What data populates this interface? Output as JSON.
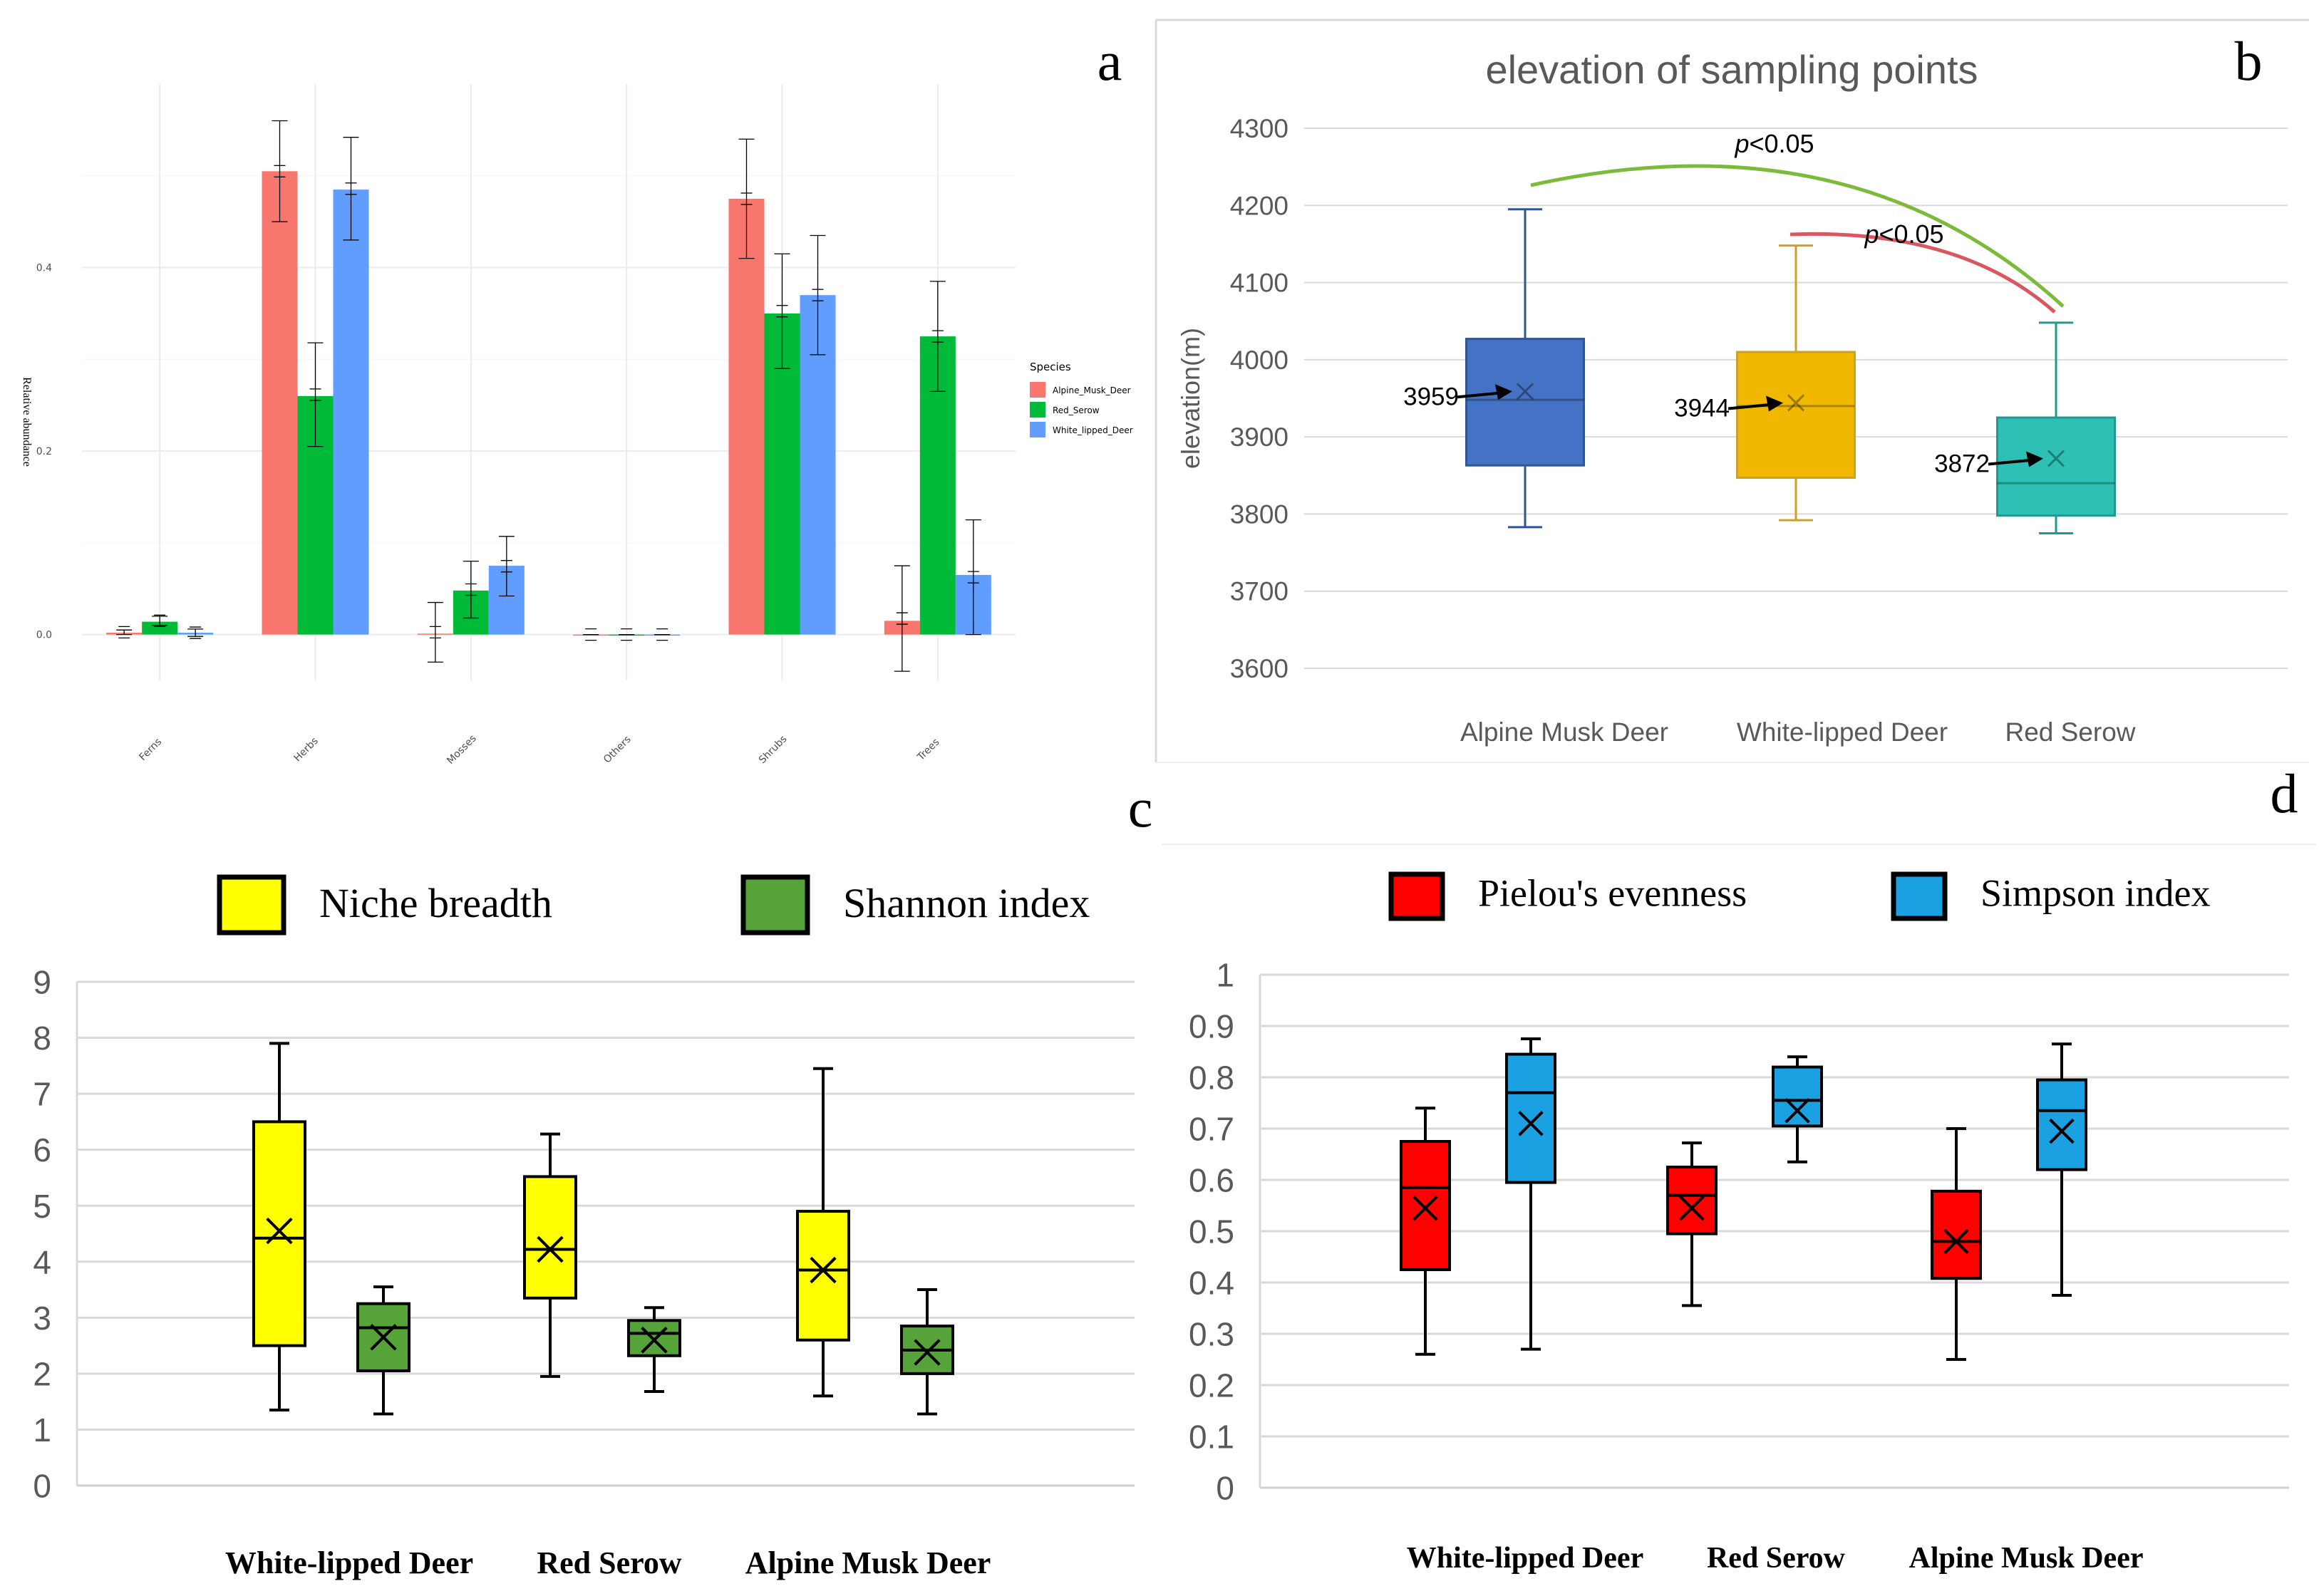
{
  "panels": [
    {
      "id": "a",
      "label": "a"
    },
    {
      "id": "b",
      "label": "b"
    },
    {
      "id": "c",
      "label": "c"
    },
    {
      "id": "d",
      "label": "d"
    }
  ],
  "chart_data": [
    {
      "id": "a",
      "type": "bar",
      "title": "",
      "xlabel": "",
      "ylabel": "Relative abundance",
      "ylim": [
        -0.05,
        0.6
      ],
      "yticks": [
        0.0,
        0.2,
        0.4
      ],
      "yticklabels": [
        "0.0",
        "0.2",
        "0.4"
      ],
      "categories": [
        "Ferns",
        "Herbs",
        "Mosses",
        "Others",
        "Shrubs",
        "Trees"
      ],
      "legend_title": "Species",
      "legend_position": "right",
      "series": [
        {
          "name": "Alpine_Musk_Deer",
          "color": "#F8766D",
          "values": [
            0.002,
            0.505,
            0.001,
            0.0,
            0.475,
            0.015
          ],
          "err_low": [
            0.0,
            0.45,
            -0.03,
            0.0,
            0.41,
            -0.04
          ],
          "err_high": [
            0.005,
            0.56,
            0.035,
            0.0,
            0.54,
            0.075
          ]
        },
        {
          "name": "Red_Serow",
          "color": "#00BA38",
          "values": [
            0.014,
            0.26,
            0.048,
            0.0,
            0.35,
            0.325
          ],
          "err_low": [
            0.01,
            0.205,
            0.018,
            0.0,
            0.29,
            0.265
          ],
          "err_high": [
            0.02,
            0.318,
            0.08,
            0.0,
            0.415,
            0.385
          ]
        },
        {
          "name": "White_lipped_Deer",
          "color": "#619CFF",
          "values": [
            0.002,
            0.485,
            0.075,
            0.0,
            0.37,
            0.065
          ],
          "err_low": [
            -0.002,
            0.43,
            0.042,
            0.0,
            0.305,
            0.0
          ],
          "err_high": [
            0.006,
            0.542,
            0.107,
            0.0,
            0.435,
            0.125
          ]
        }
      ]
    },
    {
      "id": "b",
      "type": "box",
      "title": "elevation of sampling points",
      "xlabel": "",
      "ylabel": "elevation(m)",
      "ylim": [
        3600,
        4300
      ],
      "yticks": [
        3600,
        3700,
        3800,
        3900,
        4000,
        4100,
        4200,
        4300
      ],
      "yticklabels": [
        "3600",
        "3700",
        "3800",
        "3900",
        "4000",
        "4100",
        "4200",
        "4300"
      ],
      "categories": [
        "Alpine Musk Deer",
        "White-lipped Deer",
        "Red Serow"
      ],
      "boxes": [
        {
          "category": "Alpine Musk Deer",
          "color": "#4472C4",
          "edge": "#2F5597",
          "min": 3783,
          "q1": 3863,
          "median": 3948,
          "mean": 3959,
          "q3": 4027,
          "max": 4195,
          "mean_label": "3959"
        },
        {
          "category": "White-lipped Deer",
          "color": "#F0B800",
          "edge": "#C9A227",
          "min": 3792,
          "q1": 3847,
          "median": 3940,
          "mean": 3944,
          "q3": 4010,
          "max": 4148,
          "mean_label": "3944"
        },
        {
          "category": "Red Serow",
          "color": "#2EC0B5",
          "edge": "#1E9A91",
          "min": 3775,
          "q1": 3798,
          "median": 3840,
          "mean": 3872,
          "q3": 3925,
          "max": 4048,
          "mean_label": "3872"
        }
      ],
      "annotations": [
        {
          "text": "p<0.05",
          "italic_prefix": "p",
          "rest": "<0.05",
          "from": "Alpine Musk Deer",
          "to": "Red Serow",
          "color": "#7CBA3C"
        },
        {
          "text": "p<0.05",
          "italic_prefix": "p",
          "rest": "<0.05",
          "from": "White-lipped Deer",
          "to": "Red Serow",
          "color": "#D9575F"
        }
      ]
    },
    {
      "id": "c",
      "type": "box",
      "title": "",
      "xlabel": "",
      "ylabel": "",
      "ylim": [
        0,
        9
      ],
      "yticks": [
        0,
        1,
        2,
        3,
        4,
        5,
        6,
        7,
        8,
        9
      ],
      "yticklabels": [
        "0",
        "1",
        "2",
        "3",
        "4",
        "5",
        "6",
        "7",
        "8",
        "9"
      ],
      "categories": [
        "White-lipped Deer",
        "Red Serow",
        "Alpine Musk Deer"
      ],
      "legend_position": "top",
      "series": [
        {
          "name": "Niche breadth",
          "color": "#FFFF00",
          "boxes": [
            {
              "min": 1.35,
              "q1": 2.5,
              "median": 4.42,
              "mean": 4.55,
              "q3": 6.5,
              "max": 7.9
            },
            {
              "min": 1.95,
              "q1": 3.35,
              "median": 4.22,
              "mean": 4.22,
              "q3": 5.52,
              "max": 6.28
            },
            {
              "min": 1.6,
              "q1": 2.6,
              "median": 3.85,
              "mean": 3.85,
              "q3": 4.9,
              "max": 7.45
            }
          ]
        },
        {
          "name": "Shannon index",
          "color": "#56A33A",
          "boxes": [
            {
              "min": 1.28,
              "q1": 2.05,
              "median": 2.82,
              "mean": 2.65,
              "q3": 3.25,
              "max": 3.55
            },
            {
              "min": 1.68,
              "q1": 2.32,
              "median": 2.72,
              "mean": 2.6,
              "q3": 2.95,
              "max": 3.18
            },
            {
              "min": 1.28,
              "q1": 2.0,
              "median": 2.42,
              "mean": 2.38,
              "q3": 2.85,
              "max": 3.5
            }
          ]
        }
      ]
    },
    {
      "id": "d",
      "type": "box",
      "title": "",
      "xlabel": "",
      "ylabel": "",
      "ylim": [
        0,
        1
      ],
      "yticks": [
        0,
        0.1,
        0.2,
        0.3,
        0.4,
        0.5,
        0.6,
        0.7,
        0.8,
        0.9,
        1
      ],
      "yticklabels": [
        "0",
        "0.1",
        "0.2",
        "0.3",
        "0.4",
        "0.5",
        "0.6",
        "0.7",
        "0.8",
        "0.9",
        "1"
      ],
      "categories": [
        "White-lipped Deer",
        "Red Serow",
        "Alpine Musk Deer"
      ],
      "legend_position": "top",
      "series": [
        {
          "name": "Pielou's evenness",
          "color": "#FF0000",
          "boxes": [
            {
              "min": 0.26,
              "q1": 0.425,
              "median": 0.585,
              "mean": 0.545,
              "q3": 0.675,
              "max": 0.74
            },
            {
              "min": 0.355,
              "q1": 0.495,
              "median": 0.57,
              "mean": 0.545,
              "q3": 0.625,
              "max": 0.672
            },
            {
              "min": 0.25,
              "q1": 0.408,
              "median": 0.48,
              "mean": 0.48,
              "q3": 0.578,
              "max": 0.7
            }
          ]
        },
        {
          "name": "Simpson index",
          "color": "#1BA1E2",
          "boxes": [
            {
              "min": 0.27,
              "q1": 0.595,
              "median": 0.77,
              "mean": 0.71,
              "q3": 0.845,
              "max": 0.875
            },
            {
              "min": 0.635,
              "q1": 0.705,
              "median": 0.755,
              "mean": 0.735,
              "q3": 0.82,
              "max": 0.84
            },
            {
              "min": 0.375,
              "q1": 0.62,
              "median": 0.735,
              "mean": 0.695,
              "q3": 0.795,
              "max": 0.865
            }
          ]
        }
      ]
    }
  ]
}
